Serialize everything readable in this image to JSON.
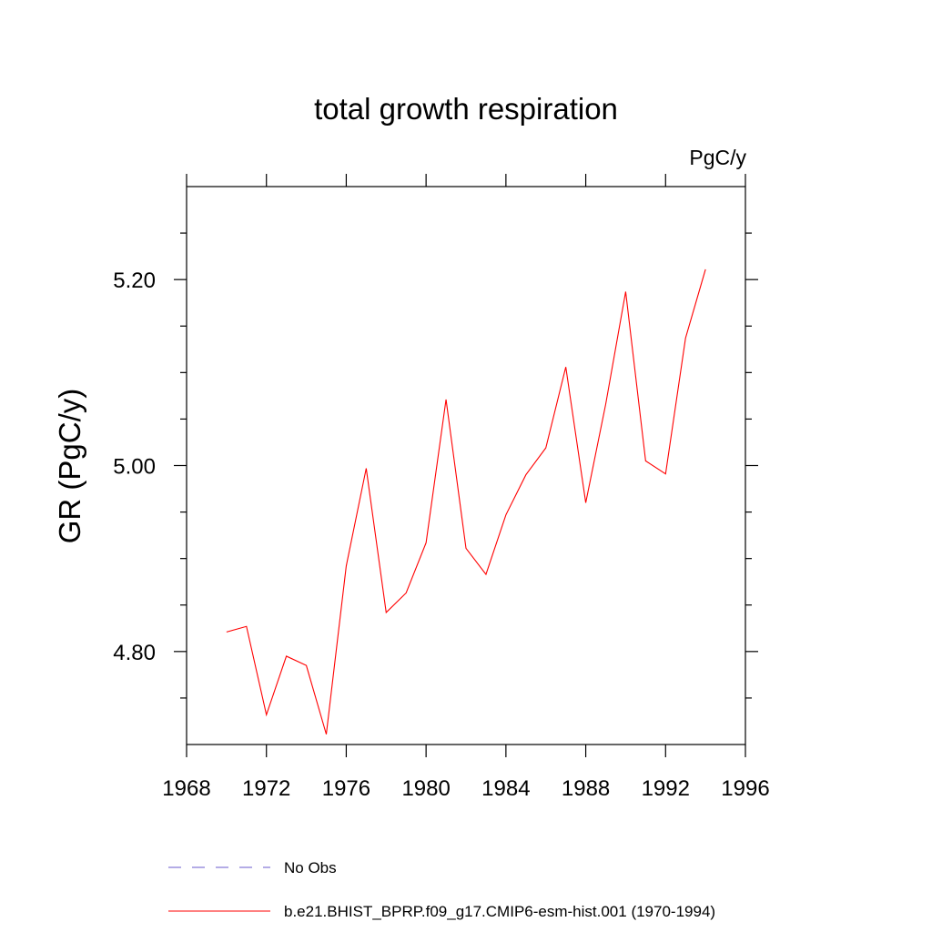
{
  "chart_data": {
    "type": "line",
    "title": "total growth respiration",
    "units": "PgC/y",
    "ylabel": "GR  (PgC/y)",
    "xlabel": "",
    "xlim": [
      1968,
      1996
    ],
    "ylim": [
      4.7,
      5.3
    ],
    "x_ticks": [
      1968,
      1972,
      1976,
      1980,
      1984,
      1988,
      1992,
      1996
    ],
    "x_tick_labels": [
      "1968",
      "1972",
      "1976",
      "1980",
      "1984",
      "1988",
      "1992",
      "1996"
    ],
    "y_ticks": [
      4.8,
      5.0,
      5.2
    ],
    "y_tick_labels": [
      "4.80",
      "5.00",
      "5.20"
    ],
    "grid": false,
    "series": [
      {
        "name": "b.e21.BHIST_BPRP.f09_g17.CMIP6-esm-hist.001 (1970-1994)",
        "color": "#ff0000",
        "x": [
          1970,
          1971,
          1972,
          1973,
          1974,
          1975,
          1976,
          1977,
          1978,
          1979,
          1980,
          1981,
          1982,
          1983,
          1984,
          1985,
          1986,
          1987,
          1988,
          1989,
          1990,
          1991,
          1992,
          1993,
          1994
        ],
        "y": [
          4.821,
          4.827,
          4.732,
          4.795,
          4.785,
          4.711,
          4.892,
          4.997,
          4.842,
          4.863,
          4.917,
          5.071,
          4.911,
          4.883,
          4.947,
          4.99,
          5.019,
          5.106,
          4.96,
          5.066,
          5.187,
          5.005,
          4.991,
          5.137,
          5.211
        ]
      }
    ],
    "legend": {
      "placement": "bottom",
      "entries": [
        {
          "label": "No Obs",
          "color": "#6a5acd",
          "style": "dashed"
        },
        {
          "label": "b.e21.BHIST_BPRP.f09_g17.CMIP6-esm-hist.001 (1970-1994)",
          "color": "#ff0000",
          "style": "solid"
        }
      ]
    }
  }
}
